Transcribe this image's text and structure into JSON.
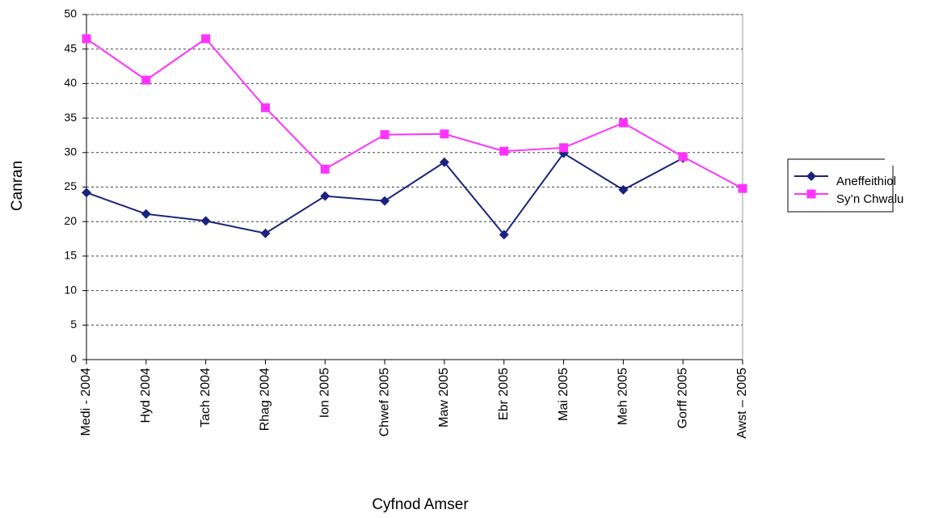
{
  "chart_data": {
    "type": "line",
    "x_label": "Cyfnod Amser",
    "y_label": "Canran",
    "categories": [
      "Medi - 2004",
      "Hyd 2004",
      "Tach 2004",
      "Rhag 2004",
      "Ion 2005",
      "Chwef 2005",
      "Maw 2005",
      "Ebr 2005",
      "Mai 2005",
      "Meh 2005",
      "Gorff 2005",
      "Awst – 2005"
    ],
    "series": [
      {
        "name": "Aneffeithiol",
        "color": "#1a237e",
        "marker": "diamond",
        "values": [
          24.2,
          21.1,
          20.1,
          18.3,
          23.7,
          23.0,
          28.6,
          18.1,
          29.9,
          24.6,
          29.2,
          null
        ]
      },
      {
        "name": "Sy’n Chwalu",
        "color": "#ff33ff",
        "marker": "square",
        "values": [
          46.5,
          40.5,
          46.5,
          36.5,
          27.6,
          32.6,
          32.7,
          30.2,
          30.7,
          34.3,
          29.4,
          24.8
        ]
      }
    ],
    "ylim": [
      0,
      50
    ],
    "yticks": [
      0,
      5,
      10,
      15,
      20,
      25,
      30,
      35,
      40,
      45,
      50
    ],
    "grid": true,
    "legend": "right"
  }
}
